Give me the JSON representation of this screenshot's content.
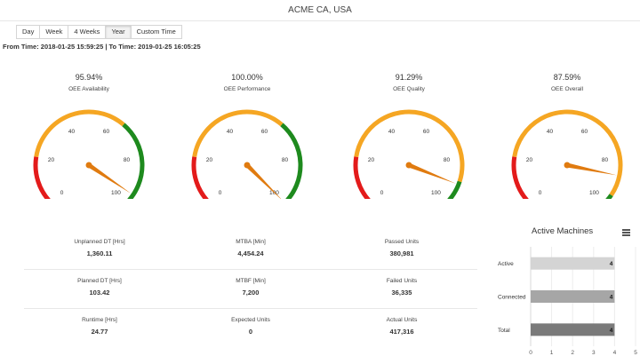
{
  "header": {
    "title": "ACME CA, USA"
  },
  "range_tabs": [
    {
      "label": "Day",
      "active": false
    },
    {
      "label": "Week",
      "active": false
    },
    {
      "label": "4 Weeks",
      "active": false
    },
    {
      "label": "Year",
      "active": true
    },
    {
      "label": "Custom Time",
      "active": false
    }
  ],
  "time_range": "From Time: 2018-01-25 15:59:25 | To Time: 2019-01-25 16:05:25",
  "gauges": [
    {
      "value_text": "95.94%",
      "label": "OEE Availability",
      "value": 95.94,
      "green_from": 65
    },
    {
      "value_text": "100.00%",
      "label": "OEE Performance",
      "value": 100.0,
      "green_from": 65
    },
    {
      "value_text": "91.29%",
      "label": "OEE Quality",
      "value": 91.29,
      "green_from": 90
    },
    {
      "value_text": "87.59%",
      "label": "OEE Overall",
      "value": 87.59,
      "green_from": 96
    }
  ],
  "gauge_scale": {
    "ticks": [
      "0",
      "20",
      "40",
      "60",
      "80",
      "100"
    ],
    "colors": {
      "red": "#e31b1b",
      "yellow": "#f5a623",
      "green": "#1e8a1e",
      "needle": "#e07b10"
    }
  },
  "metrics": [
    [
      {
        "label": "Unplanned DT [Hrs]",
        "value": "1,360.11"
      },
      {
        "label": "MTBA [Min]",
        "value": "4,454.24"
      },
      {
        "label": "Passed Units",
        "value": "380,981"
      }
    ],
    [
      {
        "label": "Planned DT [Hrs]",
        "value": "103.42"
      },
      {
        "label": "MTBF [Min]",
        "value": "7,200"
      },
      {
        "label": "Failed Units",
        "value": "36,335"
      }
    ],
    [
      {
        "label": "Runtime [Hrs]",
        "value": "24.77"
      },
      {
        "label": "Expected Units",
        "value": "0"
      },
      {
        "label": "Actual Units",
        "value": "417,316"
      }
    ]
  ],
  "chart_data": {
    "type": "bar",
    "title": "Active Machines",
    "categories": [
      "Active",
      "Connected",
      "Total"
    ],
    "values": [
      4,
      4,
      4
    ],
    "bar_colors": [
      "#d4d4d4",
      "#a6a6a6",
      "#7a7a7a"
    ],
    "xticks": [
      "0",
      "1",
      "2",
      "3",
      "4",
      "5"
    ],
    "xlim": [
      0,
      5
    ]
  }
}
